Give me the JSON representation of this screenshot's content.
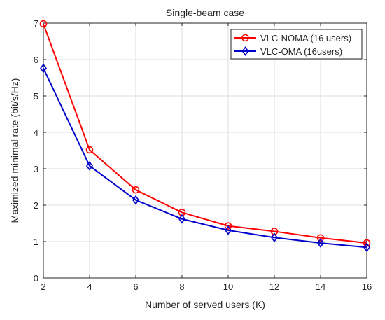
{
  "chart_data": {
    "type": "line",
    "title": "Single-beam case",
    "xlabel": "Number of served users (K)",
    "ylabel": "Maximized minimal rate (bit/s/Hz)",
    "x": [
      2,
      4,
      6,
      8,
      10,
      12,
      14,
      16
    ],
    "xlim": [
      2,
      16
    ],
    "ylim": [
      0,
      7
    ],
    "xticks": [
      "2",
      "4",
      "6",
      "8",
      "10",
      "12",
      "14",
      "16"
    ],
    "yticks": [
      "0",
      "1",
      "2",
      "3",
      "4",
      "5",
      "6",
      "7"
    ],
    "grid": true,
    "legend_position": "top-right",
    "series": [
      {
        "name": "VLC-NOMA (16 users)",
        "color": "#ff0000",
        "marker": "circle",
        "values": [
          6.98,
          3.52,
          2.42,
          1.8,
          1.43,
          1.28,
          1.1,
          0.96
        ]
      },
      {
        "name": "VLC-OMA (16users)",
        "color": "#0000cc",
        "marker": "diamond",
        "values": [
          5.76,
          3.08,
          2.14,
          1.62,
          1.31,
          1.11,
          0.96,
          0.84
        ]
      }
    ]
  }
}
